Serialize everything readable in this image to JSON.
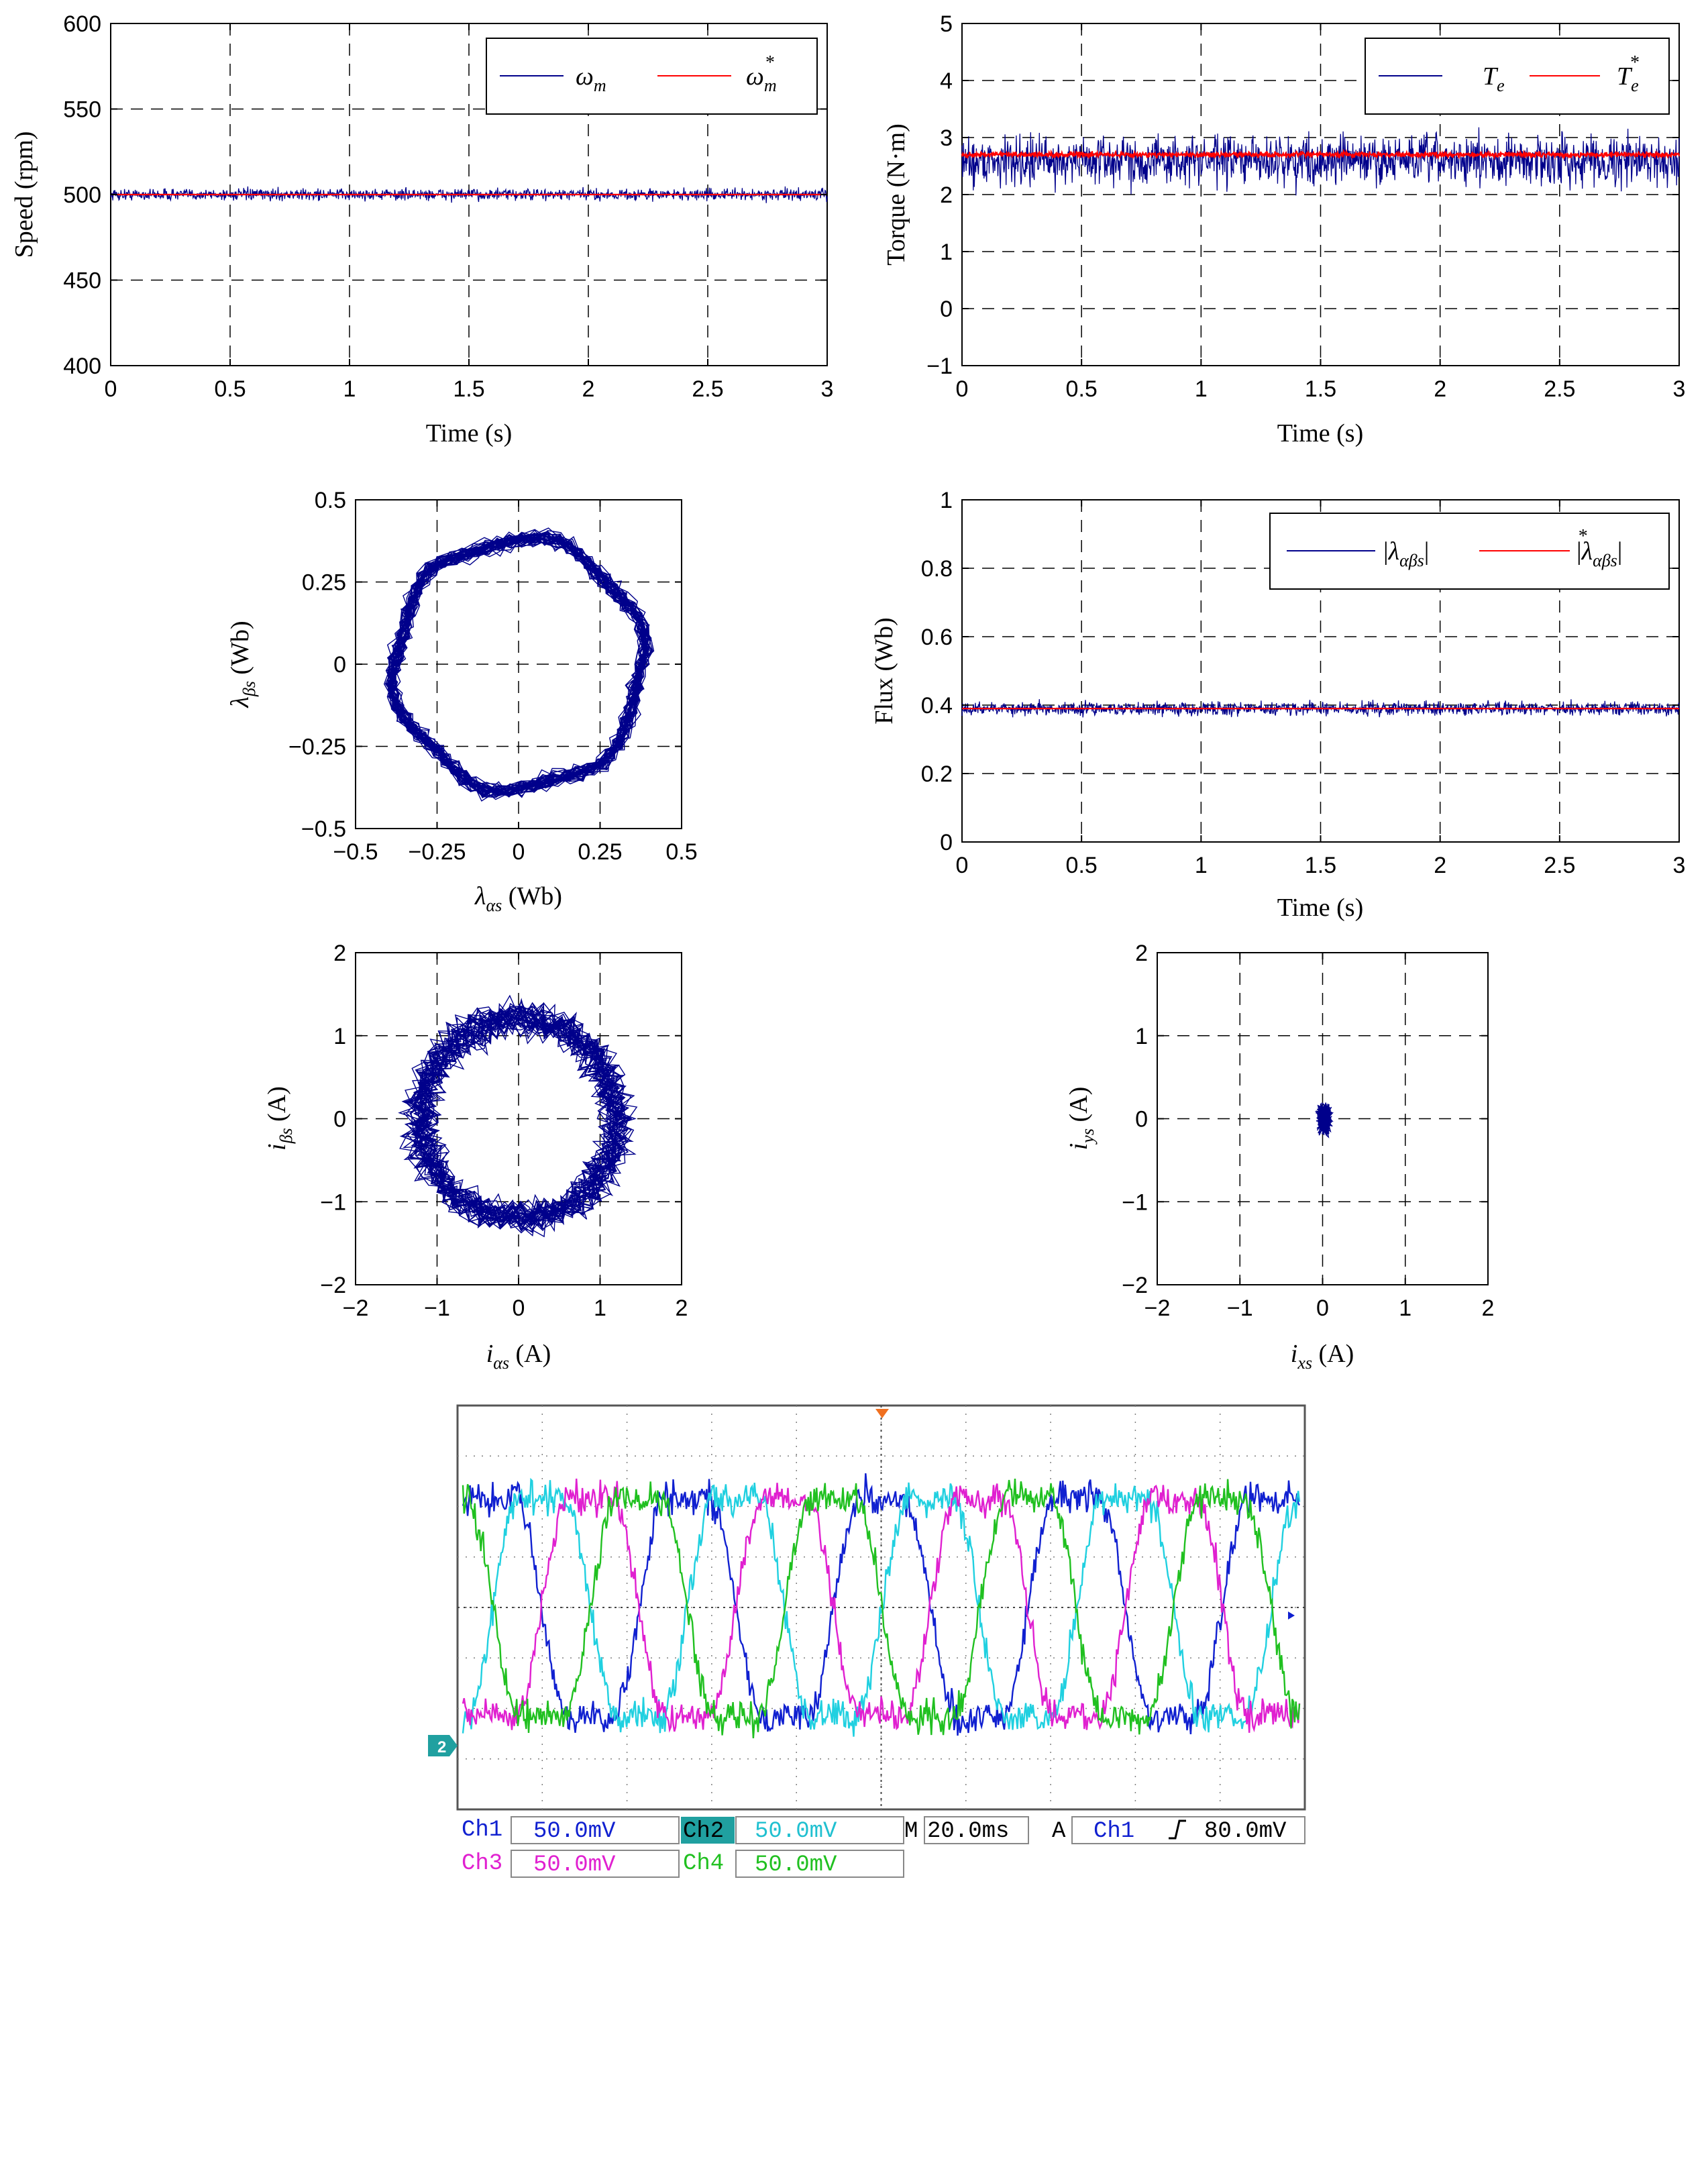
{
  "colors": {
    "measured": "#00008b",
    "reference": "#ff0000",
    "ch1": "#1020d0",
    "ch2": "#20d0e0",
    "ch3": "#e020d0",
    "ch4": "#20c020",
    "scope_grid": "#808080"
  },
  "chart_data": [
    {
      "id": "speed",
      "type": "line",
      "xlabel": "Time (s)",
      "ylabel": "Speed (rpm)",
      "xlim": [
        0,
        3
      ],
      "ylim": [
        400,
        600
      ],
      "xticks": [
        "0",
        "0.5",
        "1",
        "1.5",
        "2",
        "2.5",
        "3"
      ],
      "yticks": [
        "400",
        "450",
        "500",
        "550",
        "600"
      ],
      "grid": true,
      "legend": "top-right",
      "series": [
        {
          "name": "ω_m",
          "role": "measured",
          "mean": 500,
          "noise_amplitude": 6,
          "x_range": [
            0,
            3
          ]
        },
        {
          "name": "ω_m*",
          "role": "reference",
          "values": [
            [
              0,
              500
            ],
            [
              3,
              500
            ]
          ]
        }
      ]
    },
    {
      "id": "torque",
      "type": "line",
      "xlabel": "Time (s)",
      "ylabel": "Torque (N·m)",
      "xlim": [
        0,
        3
      ],
      "ylim": [
        -1,
        5
      ],
      "xticks": [
        "0",
        "0.5",
        "1",
        "1.5",
        "2",
        "2.5",
        "3"
      ],
      "yticks": [
        "−1",
        "0",
        "1",
        "2",
        "3",
        "4",
        "5"
      ],
      "grid": true,
      "legend": "top-right",
      "series": [
        {
          "name": "T_e",
          "role": "measured",
          "mean": 2.6,
          "noise_amplitude": 0.75,
          "x_range": [
            0,
            3
          ]
        },
        {
          "name": "T_e*",
          "role": "reference",
          "mean": 2.7,
          "noise_amplitude": 0.08,
          "x_range": [
            0,
            3
          ]
        }
      ]
    },
    {
      "id": "flux-locus",
      "type": "scatter",
      "xlabel": "λ_αs (Wb)",
      "ylabel": "λ_βs (Wb)",
      "xlim": [
        -0.5,
        0.5
      ],
      "ylim": [
        -0.5,
        0.5
      ],
      "xticks": [
        "−0.5",
        "−0.25",
        "0",
        "0.25",
        "0.5"
      ],
      "yticks": [
        "−0.5",
        "−0.25",
        "0",
        "0.25",
        "0.5"
      ],
      "grid": true,
      "locus": {
        "radius": 0.38,
        "band": 0.035
      }
    },
    {
      "id": "flux",
      "type": "line",
      "xlabel": "Time (s)",
      "ylabel": "Flux (Wb)",
      "xlim": [
        0,
        3
      ],
      "ylim": [
        0,
        1
      ],
      "xticks": [
        "0",
        "0.5",
        "1",
        "1.5",
        "2",
        "2.5",
        "3"
      ],
      "yticks": [
        "0",
        "0.2",
        "0.4",
        "0.6",
        "0.8",
        "1"
      ],
      "grid": true,
      "legend": "top-right",
      "series": [
        {
          "name": "|λ_αβs|",
          "role": "measured",
          "mean": 0.39,
          "noise_amplitude": 0.035,
          "x_range": [
            0,
            3
          ]
        },
        {
          "name": "|λ_αβs*|",
          "role": "reference",
          "values": [
            [
              0,
              0.39
            ],
            [
              3,
              0.39
            ]
          ]
        }
      ]
    },
    {
      "id": "current-ab",
      "type": "scatter",
      "xlabel": "i_αs (A)",
      "ylabel": "i_βs (A)",
      "xlim": [
        -2,
        2
      ],
      "ylim": [
        -2,
        2
      ],
      "xticks": [
        "−2",
        "−1",
        "0",
        "1",
        "2"
      ],
      "yticks": [
        "−2",
        "−1",
        "0",
        "1",
        "2"
      ],
      "grid": true,
      "locus": {
        "radius": 1.2,
        "band": 0.3
      }
    },
    {
      "id": "current-xy",
      "type": "scatter",
      "xlabel": "i_xs (A)",
      "ylabel": "i_ys (A)",
      "xlim": [
        -2,
        2
      ],
      "ylim": [
        -2,
        2
      ],
      "xticks": [
        "−2",
        "−1",
        "0",
        "1",
        "2"
      ],
      "yticks": [
        "−2",
        "−1",
        "0",
        "1",
        "2"
      ],
      "grid": true,
      "locus": {
        "radius": 0.0,
        "band": 0.17
      }
    }
  ],
  "scope": {
    "ch1_label": "Ch1",
    "ch1_scale": "50.0mV",
    "ch2_label": "Ch2",
    "ch2_scale": "50.0mV",
    "ch3_label": "Ch3",
    "ch3_scale": "50.0mV",
    "ch4_label": "Ch4",
    "ch4_scale": "50.0mV",
    "timebase_label": "M",
    "timebase": "20.0ms",
    "trigger_label": "A",
    "trigger_channel": "Ch1",
    "trigger_level": "80.0mV",
    "ground_marker": "2",
    "divisions_x": 10,
    "divisions_y": 8,
    "cycles_on_screen": 4.3,
    "channel_phase_deg": [
      0,
      90,
      180,
      270
    ]
  }
}
